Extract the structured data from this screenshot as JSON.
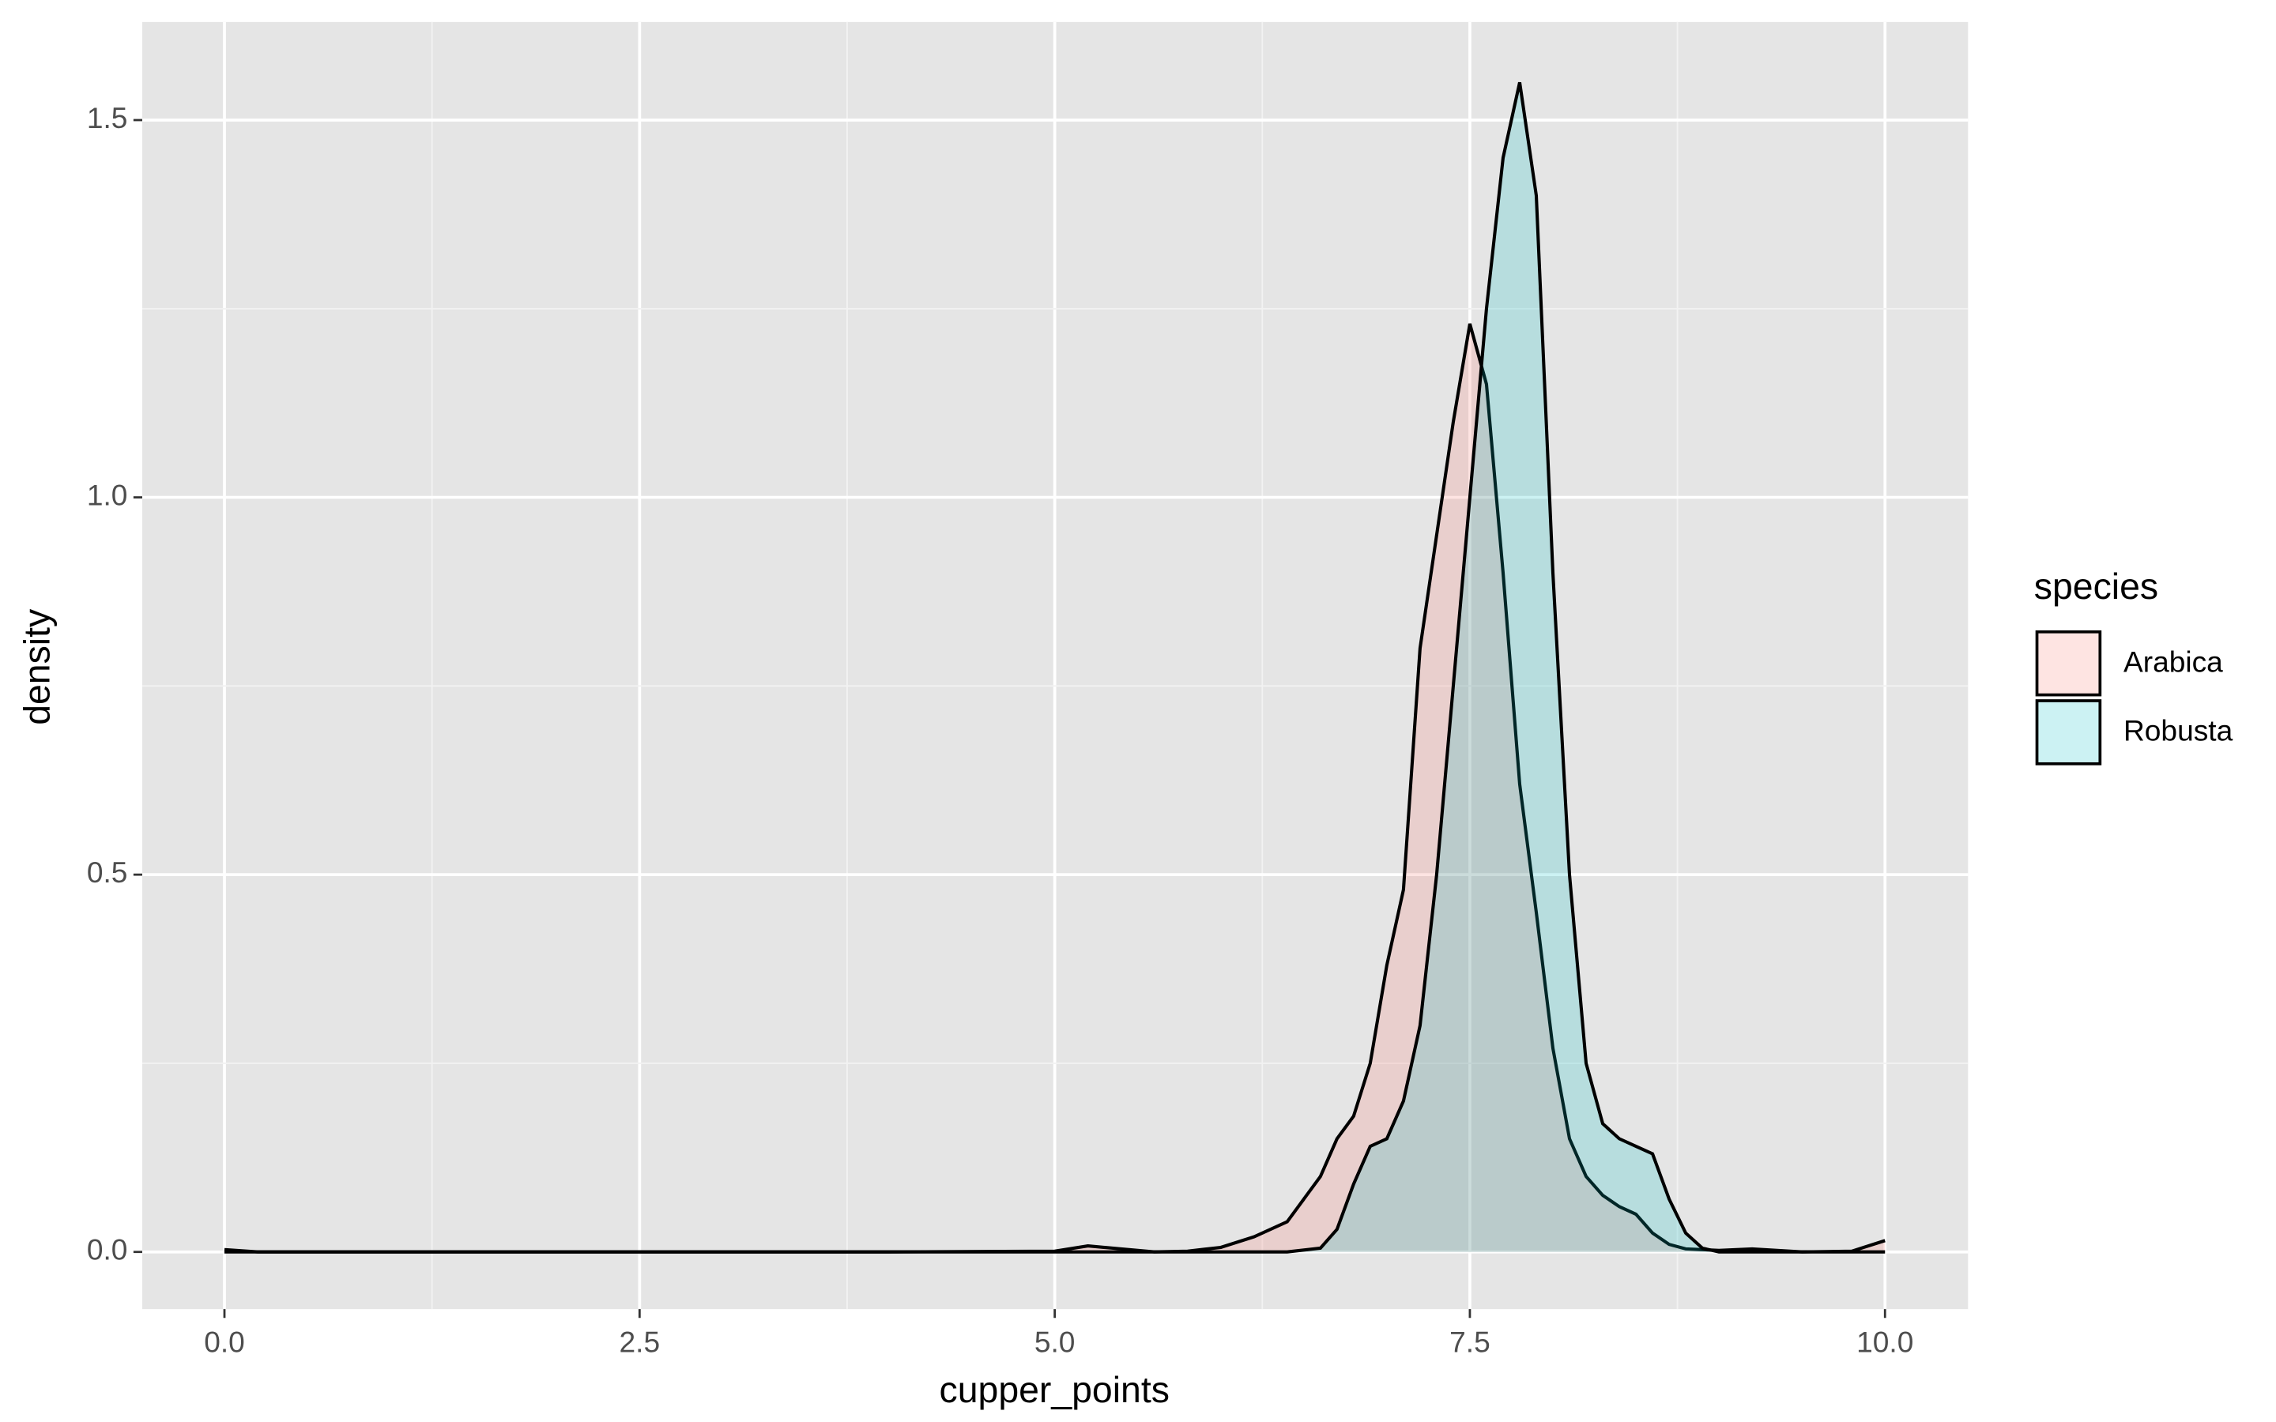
{
  "chart_data": {
    "type": "density",
    "x_label": "cupper_points",
    "y_label": "density",
    "legend_title": "species",
    "legend_position": "right",
    "x": [
      0,
      0.2,
      1,
      2,
      3,
      4,
      5,
      5.2,
      5.4,
      5.6,
      5.8,
      6,
      6.2,
      6.4,
      6.6,
      6.7,
      6.8,
      6.9,
      7,
      7.1,
      7.2,
      7.3,
      7.4,
      7.5,
      7.6,
      7.7,
      7.8,
      7.9,
      8,
      8.1,
      8.2,
      8.3,
      8.4,
      8.5,
      8.6,
      8.7,
      8.8,
      8.9,
      9,
      9.2,
      9.5,
      9.8,
      10
    ],
    "series": [
      {
        "name": "Arabica",
        "color": "#F8766D",
        "values": [
          0.003,
          0,
          0,
          0,
          0,
          0,
          0.001,
          0.008,
          0.004,
          0,
          0.001,
          0.006,
          0.02,
          0.04,
          0.1,
          0.15,
          0.18,
          0.25,
          0.38,
          0.48,
          0.8,
          0.95,
          1.1,
          1.23,
          1.15,
          0.9,
          0.62,
          0.45,
          0.27,
          0.15,
          0.1,
          0.075,
          0.06,
          0.05,
          0.025,
          0.01,
          0.004,
          0.003,
          0.002,
          0.004,
          0,
          0.001,
          0.015
        ]
      },
      {
        "name": "Robusta",
        "color": "#00BFC4",
        "values": [
          0,
          0,
          0,
          0,
          0,
          0,
          0,
          0,
          0,
          0,
          0,
          0,
          0,
          0,
          0.005,
          0.03,
          0.09,
          0.14,
          0.15,
          0.2,
          0.3,
          0.5,
          0.75,
          1.0,
          1.25,
          1.45,
          1.55,
          1.4,
          0.9,
          0.5,
          0.25,
          0.17,
          0.15,
          0.14,
          0.13,
          0.07,
          0.025,
          0.005,
          0,
          0,
          0,
          0,
          0
        ]
      }
    ],
    "alpha": 0.2,
    "xlim": [
      -0.495,
      10.5
    ],
    "ylim": [
      -0.0758,
      1.63
    ],
    "xticks": [
      {
        "value": 0,
        "label": "0.0"
      },
      2.5,
      {
        "value": 5,
        "label": "5.0"
      },
      7.5,
      {
        "value": 10,
        "label": "10.0"
      }
    ],
    "yticks": [
      {
        "value": 0,
        "label": "0.0"
      },
      0.5,
      {
        "value": 1,
        "label": "1.0"
      },
      1.5
    ],
    "grid": true,
    "minor_grid": true
  }
}
